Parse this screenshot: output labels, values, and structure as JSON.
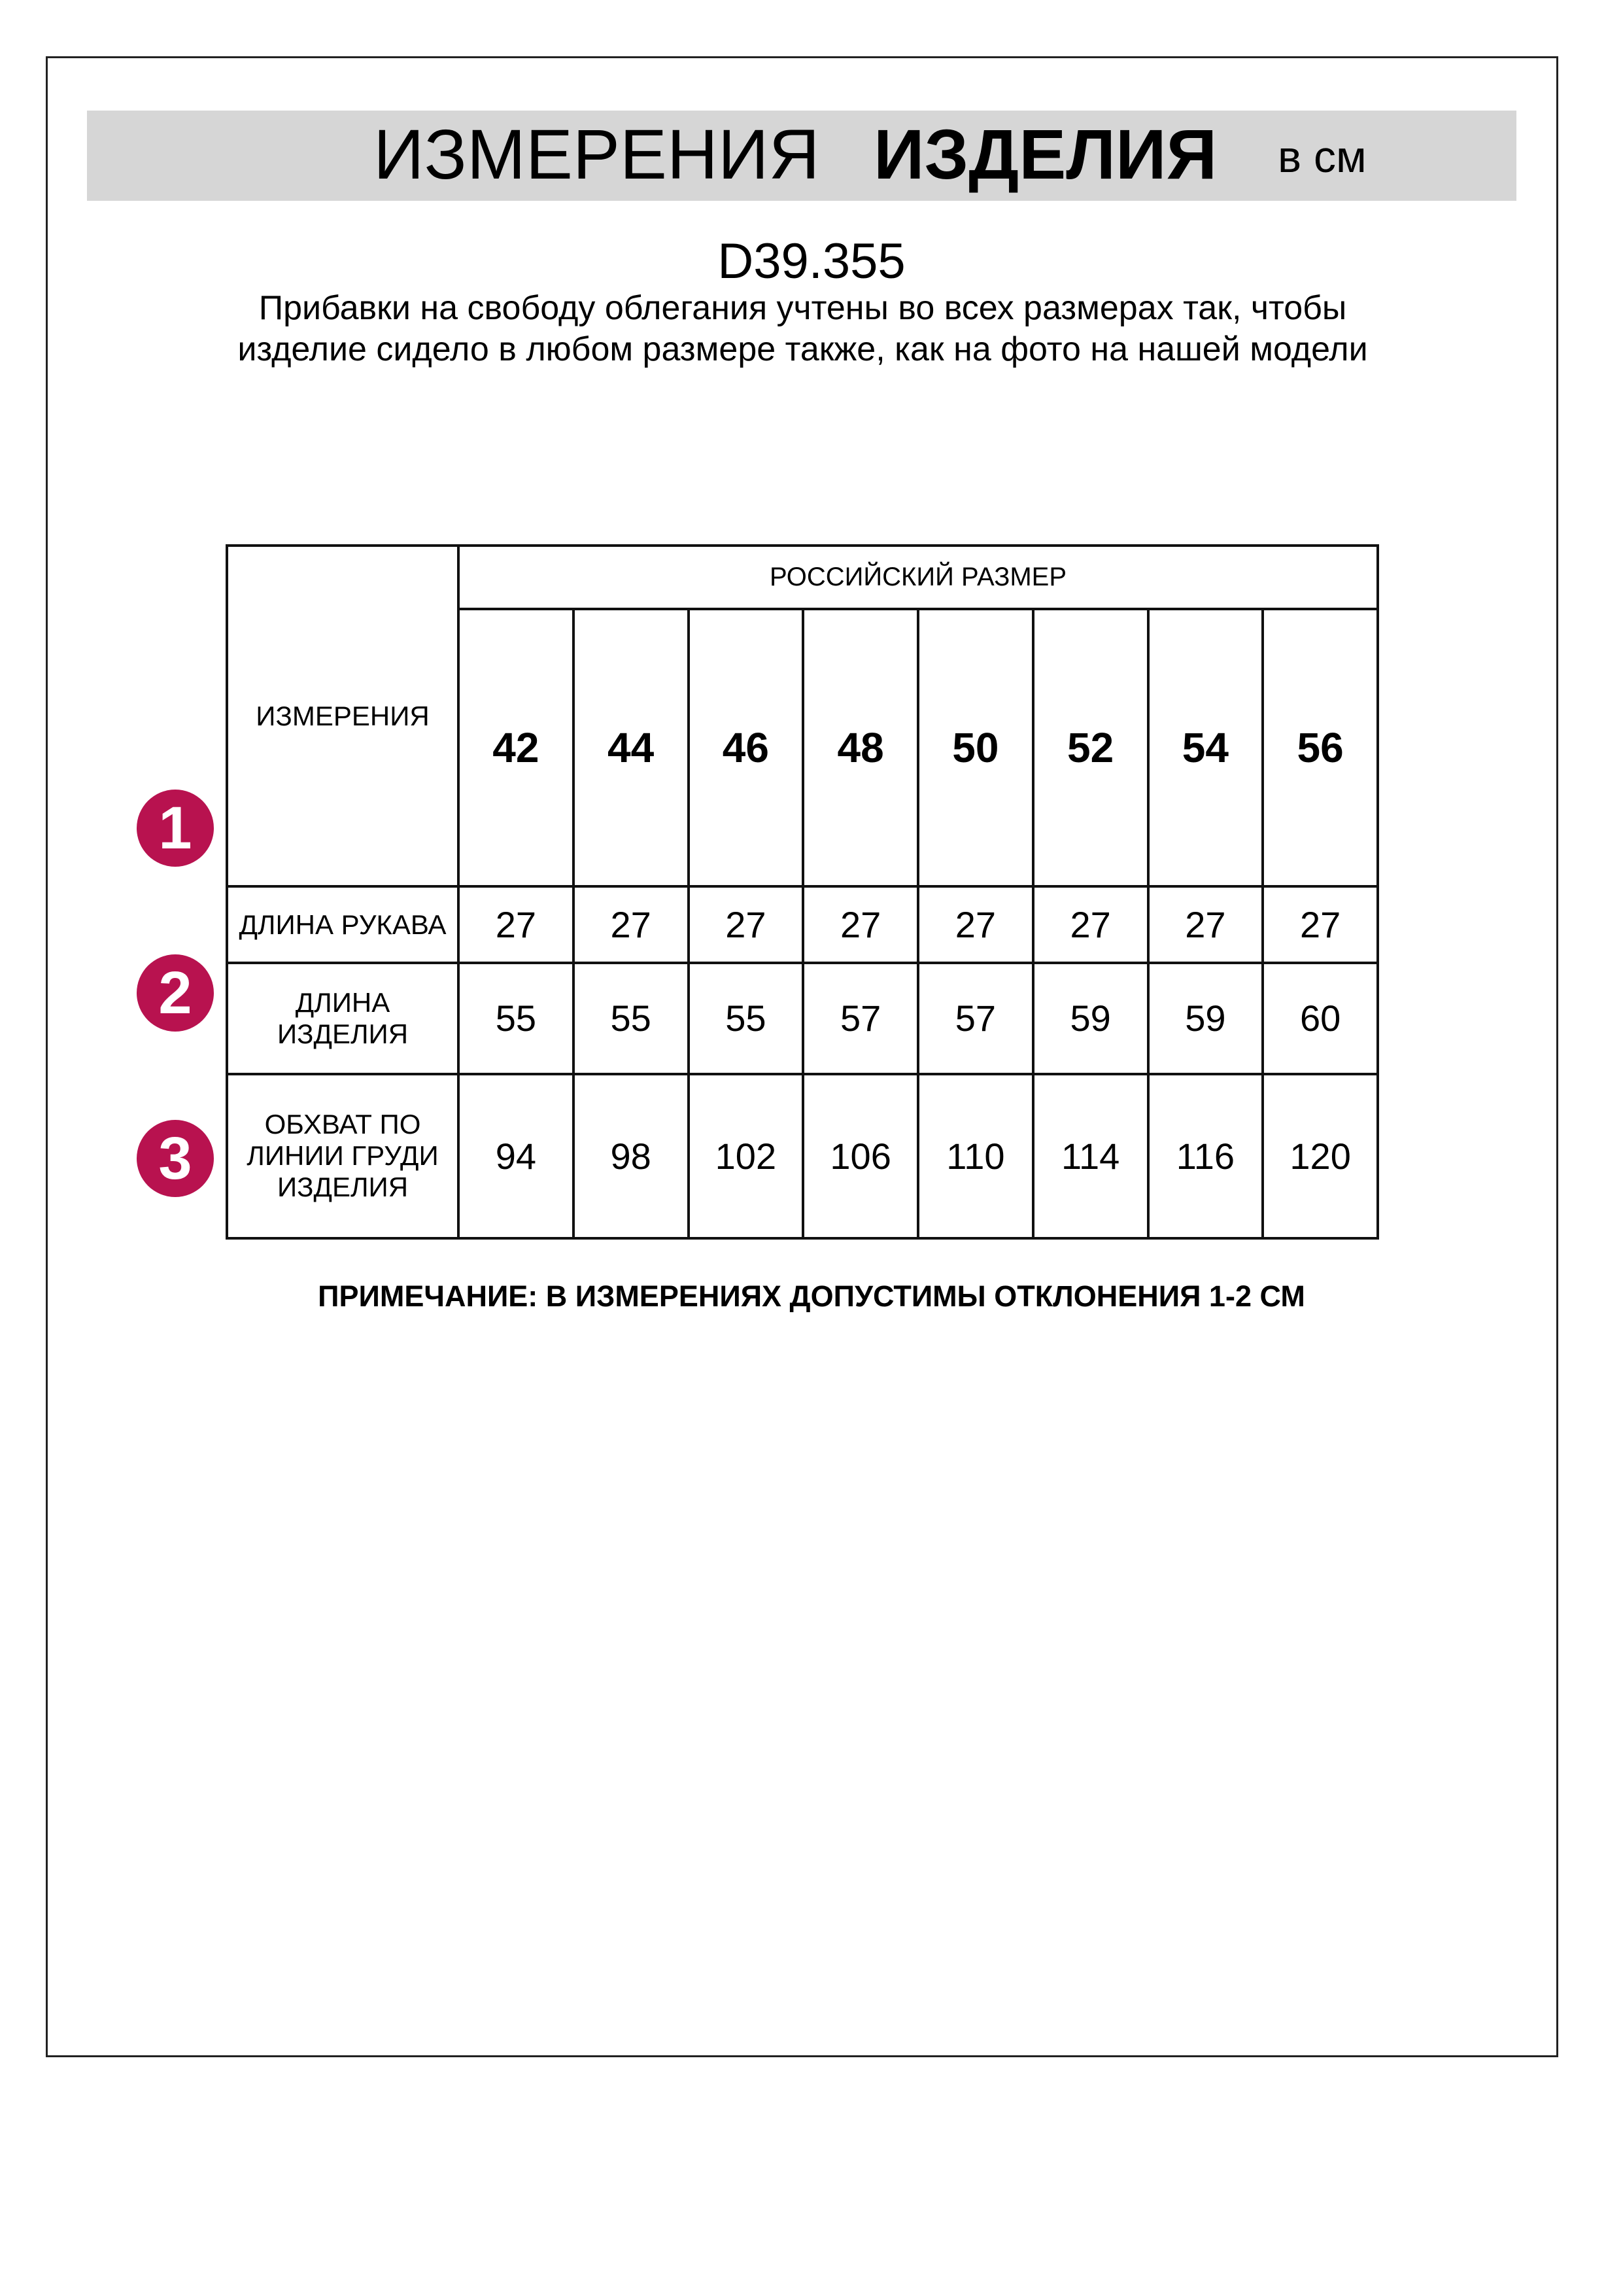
{
  "header": {
    "title_regular": "ИЗМЕРЕНИЯ",
    "title_bold": "ИЗДЕЛИЯ",
    "unit": "в см",
    "band_color": "#d6d6d6"
  },
  "product_code": "D39.355",
  "description": "Прибавки на свободу облегания учтены во всех размерах так, чтобы изделие сидело в любом размере также, как на фото на нашей модели",
  "table": {
    "corner_label": "ИЗМЕРЕНИЯ",
    "group_header": "РОССИЙСКИЙ РАЗМЕР",
    "sizes": [
      "42",
      "44",
      "46",
      "48",
      "50",
      "52",
      "54",
      "56"
    ],
    "rows": [
      {
        "number": "1",
        "label": "ДЛИНА РУКАВА",
        "values": [
          "27",
          "27",
          "27",
          "27",
          "27",
          "27",
          "27",
          "27"
        ]
      },
      {
        "number": "2",
        "label": "ДЛИНА ИЗДЕЛИЯ",
        "values": [
          "55",
          "55",
          "55",
          "57",
          "57",
          "59",
          "59",
          "60"
        ]
      },
      {
        "number": "3",
        "label": "ОБХВАТ ПО ЛИНИИ ГРУДИ ИЗДЕЛИЯ",
        "values": [
          "94",
          "98",
          "102",
          "106",
          "110",
          "114",
          "116",
          "120"
        ]
      }
    ],
    "badge_color": "#b8124f"
  },
  "note": "ПРИМЕЧАНИЕ: В ИЗМЕРЕНИЯХ ДОПУСТИМЫ ОТКЛОНЕНИЯ 1-2 СМ"
}
